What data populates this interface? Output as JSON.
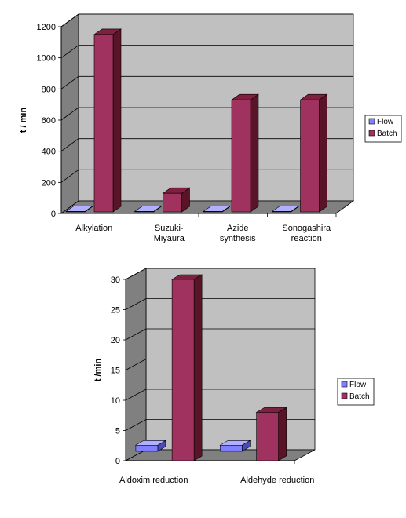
{
  "colors": {
    "flow_front": "#8080ff",
    "flow_side": "#4a4ab0",
    "flow_top": "#b0b0ff",
    "batch_front": "#a0325f",
    "batch_side": "#5a1428",
    "batch_top": "#80203f",
    "wall": "#c0c0c0",
    "wall_side": "#808080",
    "floor": "#808080"
  },
  "chart_data": [
    {
      "type": "bar",
      "ylabel": "t / min",
      "yticks": [
        "0",
        "200",
        "400",
        "600",
        "800",
        "1000",
        "1200"
      ],
      "ylim": [
        0,
        1200
      ],
      "categories": [
        "Alkylation",
        "Suzuki-Miyaura",
        "Azide synthesis",
        "Sonogashira reaction"
      ],
      "category_lines": [
        [
          "Alkylation"
        ],
        [
          "Suzuki-",
          "Miyaura"
        ],
        [
          "Azide",
          "synthesis"
        ],
        [
          "Sonogashira",
          "reaction"
        ]
      ],
      "series": [
        {
          "name": "Flow",
          "values": [
            3,
            3,
            3,
            3
          ]
        },
        {
          "name": "Batch",
          "values": [
            1140,
            120,
            720,
            720
          ]
        }
      ],
      "legend_position": "right",
      "grid": true
    },
    {
      "type": "bar",
      "ylabel": "t /min",
      "yticks": [
        "0",
        "5",
        "10",
        "15",
        "20",
        "25",
        "30"
      ],
      "ylim": [
        0,
        30
      ],
      "categories": [
        "Aldoxim reduction",
        "Aldehyde reduction"
      ],
      "category_lines": [
        [
          "Aldoxim reduction"
        ],
        [
          "Aldehyde reduction"
        ]
      ],
      "series": [
        {
          "name": "Flow",
          "values": [
            1,
            1
          ]
        },
        {
          "name": "Batch",
          "values": [
            30,
            8
          ]
        }
      ],
      "legend_position": "right",
      "grid": true
    }
  ]
}
